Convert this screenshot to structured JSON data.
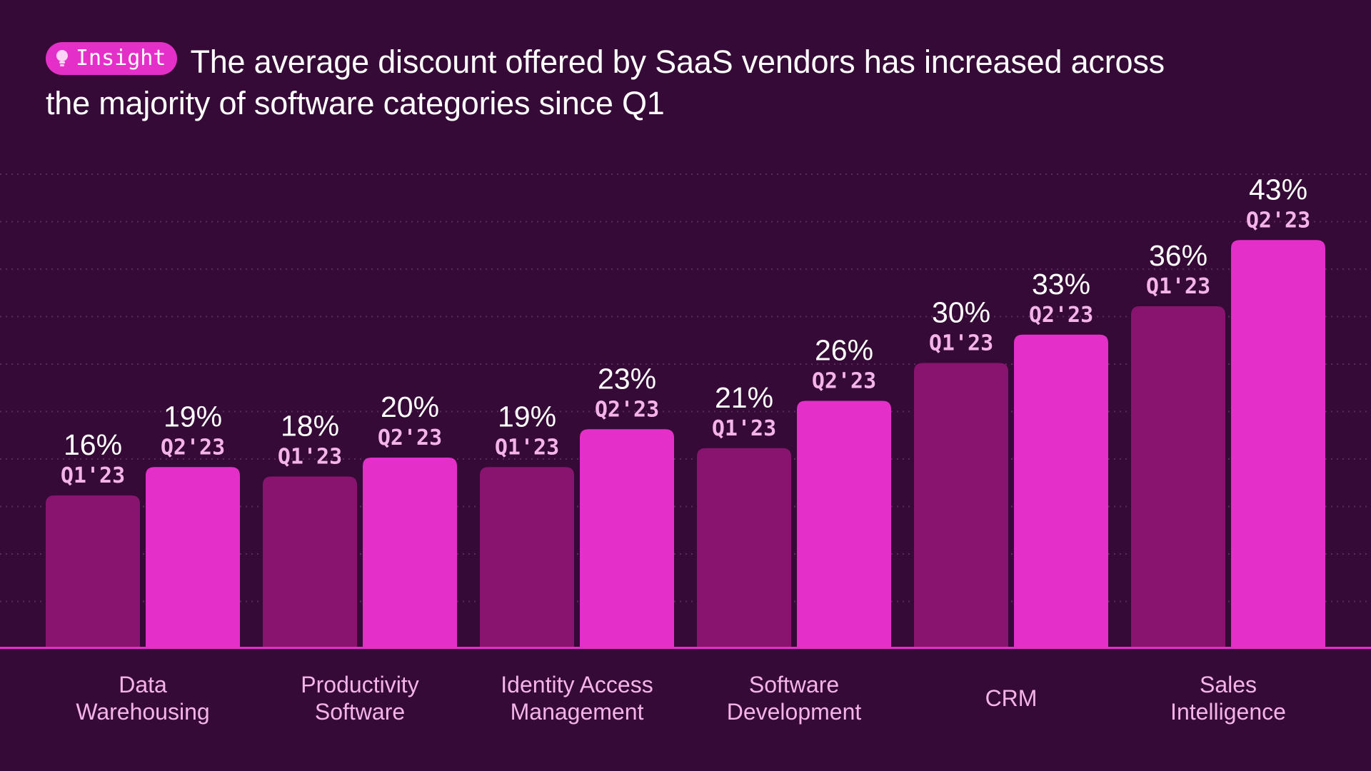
{
  "header": {
    "badge_label": "Insight",
    "badge_icon": "lightbulb-icon",
    "title": "The average discount offered by SaaS vendors has increased across the majority of software categories since Q1"
  },
  "colors": {
    "background": "#360a36",
    "q1_bar": "#891470",
    "q2_bar": "#e52fc9",
    "accent": "#e52fc9",
    "sublabel": "#f4b4ea"
  },
  "chart_data": {
    "type": "bar",
    "title": "The average discount offered by SaaS vendors has increased across the majority of software categories since Q1",
    "categories": [
      [
        "Data",
        "Warehousing"
      ],
      [
        "Productivity",
        "Software"
      ],
      [
        "Identity Access",
        "Management"
      ],
      [
        "Software",
        "Development"
      ],
      [
        "CRM"
      ],
      [
        "Sales",
        "Intelligence"
      ]
    ],
    "series": [
      {
        "name": "Q1'23",
        "values": [
          16,
          18,
          19,
          21,
          30,
          36
        ],
        "labels": [
          "16%",
          "18%",
          "19%",
          "21%",
          "30%",
          "36%"
        ]
      },
      {
        "name": "Q2'23",
        "values": [
          19,
          20,
          23,
          26,
          33,
          43
        ],
        "labels": [
          "19%",
          "20%",
          "23%",
          "26%",
          "33%",
          "43%"
        ]
      }
    ],
    "unit": "%",
    "ylim": [
      0,
      50
    ],
    "grid": true,
    "legend": "none (series labels placed above each bar)"
  }
}
